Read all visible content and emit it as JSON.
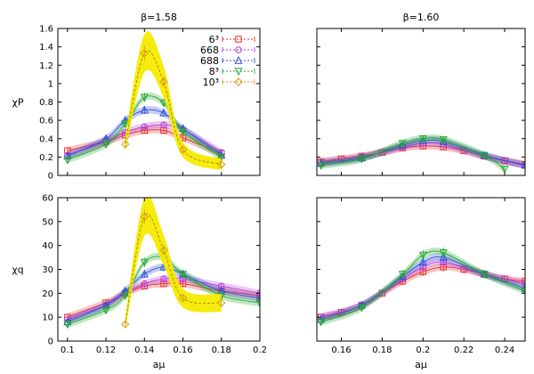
{
  "chart_data": [
    {
      "type": "line",
      "title": "β=1.58",
      "xlabel": "",
      "ylabel": "χP",
      "xlim": [
        0.095,
        0.2
      ],
      "ylim": [
        0,
        1.6
      ],
      "xticks": [
        "0.1",
        "0.12",
        "0.14",
        "0.16",
        "0.18",
        "0.2"
      ],
      "yticks": [
        "0",
        "0.2",
        "0.4",
        "0.6",
        "0.8",
        "1",
        "1.2",
        "1.4",
        "1.6"
      ],
      "show_xticklabels": false,
      "legend_position": "top-right",
      "series": [
        {
          "name": "6³",
          "color": "#e8302a",
          "marker": "square",
          "x": [
            0.1,
            0.12,
            0.13,
            0.14,
            0.15,
            0.16,
            0.18
          ],
          "y": [
            0.27,
            0.37,
            0.44,
            0.49,
            0.49,
            0.41,
            0.24
          ]
        },
        {
          "name": "668",
          "color": "#b83bd8",
          "marker": "circle",
          "x": [
            0.1,
            0.12,
            0.13,
            0.14,
            0.15,
            0.16,
            0.18
          ],
          "y": [
            0.22,
            0.37,
            0.47,
            0.53,
            0.55,
            0.5,
            0.25
          ]
        },
        {
          "name": "688",
          "color": "#2a4fd8",
          "marker": "triangle",
          "x": [
            0.1,
            0.12,
            0.13,
            0.14,
            0.15,
            0.16,
            0.18
          ],
          "y": [
            0.21,
            0.4,
            0.6,
            0.71,
            0.68,
            0.51,
            0.22
          ]
        },
        {
          "name": "8³",
          "color": "#23a82e",
          "marker": "triangle-down",
          "x": [
            0.1,
            0.12,
            0.13,
            0.14,
            0.15,
            0.16,
            0.18
          ],
          "y": [
            0.17,
            0.34,
            0.56,
            0.85,
            0.79,
            0.48,
            0.2
          ]
        },
        {
          "name": "10³",
          "color": "#d89a1a",
          "marker": "diamond",
          "x": [
            0.13,
            0.14,
            0.15,
            0.16,
            0.18
          ],
          "y": [
            0.34,
            1.33,
            1.02,
            0.28,
            0.12
          ]
        }
      ]
    },
    {
      "type": "line",
      "title": "β=1.60",
      "xlabel": "",
      "ylabel": "",
      "xlim": [
        0.148,
        0.25
      ],
      "ylim": [
        0,
        1.6
      ],
      "xticks": [
        "0.16",
        "0.18",
        "0.2",
        "0.22",
        "0.24"
      ],
      "yticks": [
        "0",
        "0.2",
        "0.4",
        "0.6",
        "0.8",
        "1",
        "1.2",
        "1.4",
        "1.6"
      ],
      "show_xticklabels": false,
      "show_yticklabels": false,
      "series": [
        {
          "color": "#e8302a",
          "marker": "square",
          "x": [
            0.15,
            0.16,
            0.17,
            0.18,
            0.19,
            0.2,
            0.21,
            0.22,
            0.23,
            0.24,
            0.25
          ],
          "y": [
            0.15,
            0.18,
            0.21,
            0.25,
            0.3,
            0.32,
            0.31,
            0.27,
            0.21,
            0.16,
            0.12
          ]
        },
        {
          "color": "#b83bd8",
          "marker": "circle",
          "x": [
            0.15,
            0.17,
            0.19,
            0.2,
            0.21,
            0.23,
            0.25
          ],
          "y": [
            0.14,
            0.2,
            0.31,
            0.35,
            0.34,
            0.21,
            0.11
          ]
        },
        {
          "color": "#2a4fd8",
          "marker": "triangle",
          "x": [
            0.15,
            0.17,
            0.19,
            0.2,
            0.21,
            0.23,
            0.25
          ],
          "y": [
            0.13,
            0.19,
            0.33,
            0.38,
            0.37,
            0.22,
            0.11
          ]
        },
        {
          "color": "#23a82e",
          "marker": "triangle-down",
          "x": [
            0.15,
            0.17,
            0.19,
            0.2,
            0.21,
            0.23,
            0.24
          ],
          "y": [
            0.11,
            0.18,
            0.35,
            0.4,
            0.39,
            0.22,
            0.07
          ]
        }
      ]
    },
    {
      "type": "line",
      "title": "",
      "xlabel": "aμ",
      "ylabel": "χq",
      "xlim": [
        0.095,
        0.2
      ],
      "ylim": [
        0,
        60
      ],
      "xticks": [
        "0.1",
        "0.12",
        "0.14",
        "0.16",
        "0.18",
        "0.2"
      ],
      "yticks": [
        "0",
        "10",
        "20",
        "30",
        "40",
        "50",
        "60"
      ],
      "series": [
        {
          "color": "#e8302a",
          "marker": "square",
          "x": [
            0.1,
            0.12,
            0.13,
            0.14,
            0.15,
            0.16,
            0.18,
            0.2
          ],
          "y": [
            10,
            16,
            20,
            23,
            24,
            24,
            21,
            19
          ]
        },
        {
          "color": "#b83bd8",
          "marker": "circle",
          "x": [
            0.1,
            0.12,
            0.13,
            0.14,
            0.15,
            0.16,
            0.18,
            0.2
          ],
          "y": [
            9,
            15,
            20,
            24,
            26,
            26,
            23,
            20
          ]
        },
        {
          "color": "#2a4fd8",
          "marker": "triangle",
          "x": [
            0.1,
            0.12,
            0.13,
            0.14,
            0.15,
            0.16,
            0.18,
            0.2
          ],
          "y": [
            8,
            15,
            21,
            28,
            31,
            28,
            21,
            18
          ]
        },
        {
          "color": "#23a82e",
          "marker": "triangle-down",
          "x": [
            0.1,
            0.12,
            0.13,
            0.14,
            0.15,
            0.16,
            0.18,
            0.2
          ],
          "y": [
            7,
            13,
            19,
            33,
            35,
            28,
            19,
            16
          ]
        },
        {
          "color": "#d89a1a",
          "marker": "diamond",
          "x": [
            0.13,
            0.14,
            0.15,
            0.16,
            0.18
          ],
          "y": [
            7,
            52,
            38,
            18,
            16
          ]
        }
      ]
    },
    {
      "type": "line",
      "title": "",
      "xlabel": "aμ",
      "ylabel": "",
      "xlim": [
        0.148,
        0.25
      ],
      "ylim": [
        0,
        60
      ],
      "xticks": [
        "0.16",
        "0.18",
        "0.2",
        "0.22",
        "0.24"
      ],
      "yticks": [
        "0",
        "10",
        "20",
        "30",
        "40",
        "50",
        "60"
      ],
      "show_yticklabels": false,
      "series": [
        {
          "color": "#e8302a",
          "marker": "square",
          "x": [
            0.15,
            0.16,
            0.17,
            0.18,
            0.19,
            0.2,
            0.21,
            0.22,
            0.23,
            0.24,
            0.25
          ],
          "y": [
            10,
            12,
            15,
            20,
            25,
            29,
            31,
            30,
            28,
            26,
            25
          ]
        },
        {
          "color": "#b83bd8",
          "marker": "circle",
          "x": [
            0.15,
            0.17,
            0.19,
            0.2,
            0.21,
            0.23,
            0.25
          ],
          "y": [
            10,
            15,
            26,
            31,
            33,
            28,
            24
          ]
        },
        {
          "color": "#2a4fd8",
          "marker": "triangle",
          "x": [
            0.15,
            0.17,
            0.19,
            0.2,
            0.21,
            0.23,
            0.25
          ],
          "y": [
            9,
            15,
            27,
            33,
            35,
            28,
            22
          ]
        },
        {
          "color": "#23a82e",
          "marker": "triangle-down",
          "x": [
            0.15,
            0.17,
            0.19,
            0.2,
            0.21,
            0.23,
            0.25
          ],
          "y": [
            8,
            14,
            28,
            36,
            37,
            28,
            21
          ]
        }
      ]
    }
  ]
}
